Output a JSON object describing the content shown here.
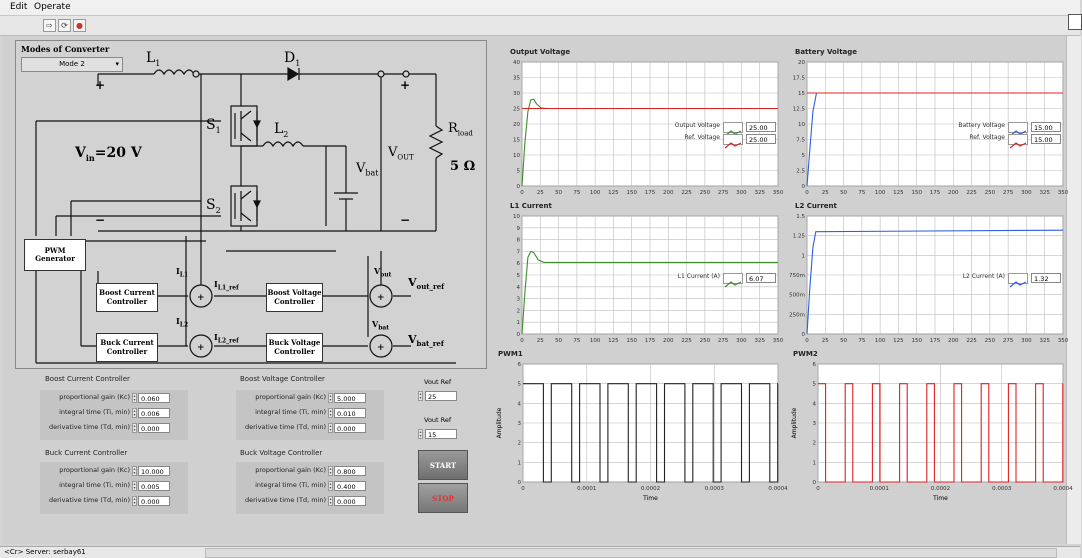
{
  "menu": {
    "items": [
      "Edit",
      "Operate"
    ]
  },
  "status": {
    "context": "<Cr> Server: serbay61"
  },
  "circuit": {
    "modes_title": "Modes of Converter",
    "mode_value": "Mode 2",
    "labels": {
      "L1": "L",
      "L1_sub": "1",
      "D1": "D",
      "D1_sub": "1",
      "S1": "S",
      "S1_sub": "1",
      "S2": "S",
      "S2_sub": "2",
      "L2": "L",
      "L2_sub": "2",
      "vin": "V",
      "vin_sub": "in",
      "vin_eq": "=20 V",
      "vout": "V",
      "vout_sub": "OUT",
      "vbat": "V",
      "vbat_sub": "bat",
      "rload": "R",
      "rload_sub": "load",
      "rload_val": "5 Ω",
      "iL1": "I",
      "iL1_sub": "L1",
      "iL1ref": "I",
      "iL1ref_sub": "L1_ref",
      "iL2": "I",
      "iL2_sub": "L2",
      "iL2ref": "I",
      "iL2ref_sub": "L2_ref",
      "vout2": "V",
      "vout2_sub": "out",
      "voutref": "V",
      "voutref_sub": "out_ref",
      "vbat2": "V",
      "vbat2_sub": "bat",
      "vbatref": "V",
      "vbatref_sub": "bat_ref",
      "plus": "+",
      "minus": "−"
    },
    "pwm_block": "PWM Generator",
    "boost_current": "Boost Current Controller",
    "boost_voltage": "Boost Voltage Controller",
    "buck_current": "Buck Current Controller",
    "buck_voltage": "Buck Voltage Controller"
  },
  "controls": {
    "boost_current": {
      "title": "Boost Current Controller",
      "rows": [
        {
          "label": "proportional gain (Kc)",
          "value": "0.060"
        },
        {
          "label": "integral time (Ti, min)",
          "value": "0.006"
        },
        {
          "label": "derivative time (Td, min)",
          "value": "0.000"
        }
      ]
    },
    "boost_voltage": {
      "title": "Boost Voltage Controller",
      "rows": [
        {
          "label": "proportional gain (Kc)",
          "value": "5.000"
        },
        {
          "label": "integral time (Ti, min)",
          "value": "0.010"
        },
        {
          "label": "derivative time (Td, min)",
          "value": "0.000"
        }
      ]
    },
    "buck_current": {
      "title": "Buck Current Controller",
      "rows": [
        {
          "label": "proportional gain (Kc)",
          "value": "10.000"
        },
        {
          "label": "integral time (Ti, min)",
          "value": "0.005"
        },
        {
          "label": "derivative time (Td, min)",
          "value": "0.000"
        }
      ]
    },
    "buck_voltage": {
      "title": "Buck Voltage Controller",
      "rows": [
        {
          "label": "proportional gain (Kc)",
          "value": "0.800"
        },
        {
          "label": "integral time (Ti, min)",
          "value": "0.400"
        },
        {
          "label": "derivative time (Td, min)",
          "value": "0.000"
        }
      ]
    },
    "vout_ref": {
      "label": "Vout Ref",
      "value": "25"
    },
    "vbat_ref": {
      "label": "Vout Ref",
      "value": "15"
    },
    "start": "START",
    "stop": "STOP"
  },
  "colors": {
    "green": "#3e8e2e",
    "red": "#e02020",
    "blue": "#2f5fe0",
    "grid": "#bdbdbd",
    "plot_bg": "#ffffff"
  },
  "chart_data": [
    {
      "id": "ov",
      "type": "line",
      "title": "Output Voltage",
      "ylim": [
        0,
        40
      ],
      "yticks": [
        "0",
        "5",
        "10",
        "15",
        "20",
        "25",
        "30",
        "35",
        "40"
      ],
      "xticks": [
        "0",
        "25",
        "50",
        "75",
        "100",
        "125",
        "150",
        "175",
        "200",
        "225",
        "250",
        "275",
        "300",
        "325",
        "350"
      ],
      "xlim": [
        0,
        350
      ],
      "series": [
        {
          "name": "Output Voltage",
          "color": "#3e8e2e",
          "points": [
            [
              0,
              0
            ],
            [
              4,
              14
            ],
            [
              8,
              24
            ],
            [
              12,
              27.8
            ],
            [
              16,
              28
            ],
            [
              20,
              26.5
            ],
            [
              26,
              25.2
            ],
            [
              34,
              25
            ],
            [
              350,
              25
            ]
          ]
        },
        {
          "name": "Ref. Voltage",
          "color": "#e02020",
          "points": [
            [
              0,
              25
            ],
            [
              350,
              25
            ]
          ]
        }
      ],
      "legend": [
        {
          "label": "Output Voltage",
          "value": "25.00"
        },
        {
          "label": "Ref. Voltage",
          "value": "25.00"
        }
      ]
    },
    {
      "id": "bv",
      "type": "line",
      "title": "Battery Voltage",
      "ylim": [
        0,
        20
      ],
      "yticks": [
        "0",
        "2.5",
        "5",
        "7.5",
        "10",
        "12.5",
        "15",
        "17.5",
        "20"
      ],
      "xticks": [
        "0",
        "25",
        "50",
        "75",
        "100",
        "125",
        "150",
        "175",
        "200",
        "225",
        "250",
        "275",
        "300",
        "325",
        "350"
      ],
      "xlim": [
        0,
        350
      ],
      "series": [
        {
          "name": "Battery Voltage",
          "color": "#2f5fe0",
          "points": [
            [
              0,
              0
            ],
            [
              4,
              6
            ],
            [
              8,
              12
            ],
            [
              13,
              15
            ],
            [
              350,
              15
            ]
          ]
        },
        {
          "name": "Ref. Voltage",
          "color": "#e02020",
          "points": [
            [
              0,
              15
            ],
            [
              350,
              15
            ]
          ]
        }
      ],
      "legend": [
        {
          "label": "Battery Voltage",
          "value": "15.00"
        },
        {
          "label": "Ref. Voltage",
          "value": "15.00"
        }
      ]
    },
    {
      "id": "l1",
      "type": "line",
      "title": "L1 Current",
      "ylim": [
        0,
        10
      ],
      "yticks": [
        "0",
        "1",
        "2",
        "3",
        "4",
        "5",
        "6",
        "7",
        "8",
        "9",
        "10"
      ],
      "xticks": [
        "0",
        "25",
        "50",
        "75",
        "100",
        "125",
        "150",
        "175",
        "200",
        "225",
        "250",
        "275",
        "300",
        "325",
        "350"
      ],
      "xlim": [
        0,
        350
      ],
      "series": [
        {
          "name": "L1 Current (A)",
          "color": "#3e8e2e",
          "points": [
            [
              0,
              0
            ],
            [
              4,
              3.5
            ],
            [
              8,
              6.5
            ],
            [
              12,
              7
            ],
            [
              16,
              6.9
            ],
            [
              22,
              6.3
            ],
            [
              30,
              6.07
            ],
            [
              350,
              6.07
            ]
          ]
        }
      ],
      "legend": [
        {
          "label": "L1 Current (A)",
          "value": "6.07"
        }
      ]
    },
    {
      "id": "l2",
      "type": "line",
      "title": "L2 Current",
      "ylim": [
        0,
        1.5
      ],
      "yticks": [
        "0",
        "250m",
        "500m",
        "750m",
        "1",
        "1.25",
        "1.5"
      ],
      "xticks": [
        "0",
        "25",
        "50",
        "75",
        "100",
        "125",
        "150",
        "175",
        "200",
        "225",
        "250",
        "275",
        "300",
        "325",
        "350"
      ],
      "xlim": [
        0,
        350
      ],
      "series": [
        {
          "name": "L2 Current (A)",
          "color": "#2f5fe0",
          "points": [
            [
              0,
              0
            ],
            [
              4,
              0.6
            ],
            [
              8,
              1.1
            ],
            [
              12,
              1.3
            ],
            [
              350,
              1.32
            ]
          ]
        }
      ],
      "legend": [
        {
          "label": "L2 Current (A)",
          "value": "1.32"
        }
      ]
    },
    {
      "id": "p1",
      "type": "line",
      "title": "PWM1",
      "ylabel": "Amplitude",
      "xlabel": "Time",
      "ylim": [
        0,
        6
      ],
      "yticks": [
        "0",
        "1",
        "2",
        "3",
        "4",
        "5",
        "6"
      ],
      "xticks": [
        "0",
        "0.0001",
        "0.0002",
        "0.0003",
        "0.0004"
      ],
      "xlim": [
        0,
        0.0004
      ],
      "series": [
        {
          "name": "PWM1",
          "color": "#222222",
          "pulses": {
            "high": 5,
            "period": 4.44e-05,
            "duty": 0.72
          }
        }
      ],
      "legend": []
    },
    {
      "id": "p2",
      "type": "line",
      "title": "PWM2",
      "ylabel": "Amplitude",
      "xlabel": "Time",
      "ylim": [
        0,
        6
      ],
      "yticks": [
        "0",
        "1",
        "2",
        "3",
        "4",
        "5",
        "6"
      ],
      "xticks": [
        "0",
        "0.0001",
        "0.0002",
        "0.0003",
        "0.0004"
      ],
      "xlim": [
        0,
        0.0004
      ],
      "series": [
        {
          "name": "PWM2",
          "color": "#e02020",
          "pulses": {
            "high": 5,
            "period": 4.44e-05,
            "duty": 0.28
          }
        }
      ],
      "legend": []
    }
  ]
}
